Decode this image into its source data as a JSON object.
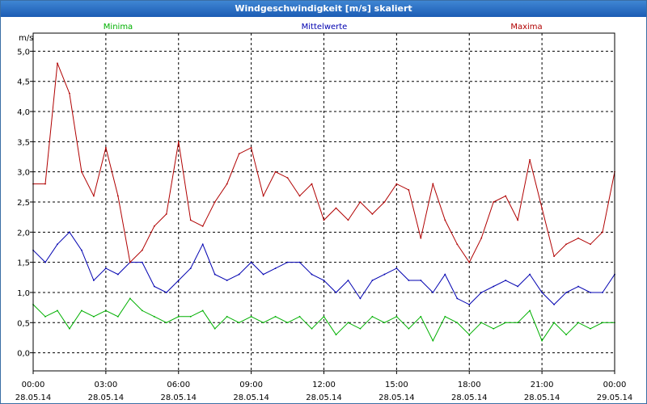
{
  "window": {
    "title": "Windgeschwindigkeit [m/s] skaliert"
  },
  "chart_data": {
    "type": "line",
    "title": "Windgeschwindigkeit [m/s] skaliert",
    "ylabel": "m/s",
    "xlabel": "",
    "ylim": [
      -0.3,
      5.3
    ],
    "xlim": [
      0,
      24
    ],
    "grid": true,
    "legend_placement": "top",
    "yticks": [
      0,
      0.5,
      1,
      1.5,
      2,
      2.5,
      3,
      3.5,
      4,
      4.5,
      5
    ],
    "ytick_labels": [
      "0,0",
      "0,5",
      "1,0",
      "1,5",
      "2,0",
      "2,5",
      "3,0",
      "3,5",
      "4,0",
      "4,5",
      "5,0"
    ],
    "xticks": [
      {
        "time": "00:00",
        "date": "28.05.14"
      },
      {
        "time": "03:00",
        "date": "28.05.14"
      },
      {
        "time": "06:00",
        "date": "28.05.14"
      },
      {
        "time": "09:00",
        "date": "28.05.14"
      },
      {
        "time": "12:00",
        "date": "28.05.14"
      },
      {
        "time": "15:00",
        "date": "28.05.14"
      },
      {
        "time": "18:00",
        "date": "28.05.14"
      },
      {
        "time": "21:00",
        "date": "28.05.14"
      },
      {
        "time": "00:00",
        "date": "29.05.14"
      }
    ],
    "x_hours": [
      0,
      0.5,
      1,
      1.5,
      2,
      2.5,
      3,
      3.5,
      4,
      4.5,
      5,
      5.5,
      6,
      6.5,
      7,
      7.5,
      8,
      8.5,
      9,
      9.5,
      10,
      10.5,
      11,
      11.5,
      12,
      12.5,
      13,
      13.5,
      14,
      14.5,
      15,
      15.5,
      16,
      16.5,
      17,
      17.5,
      18,
      18.5,
      19,
      19.5,
      20,
      20.5,
      21,
      21.5,
      22,
      22.5,
      23,
      23.5,
      24
    ],
    "series": [
      {
        "name": "Minima",
        "color": "#00b000",
        "values": [
          0.8,
          0.6,
          0.7,
          0.4,
          0.7,
          0.6,
          0.7,
          0.6,
          0.9,
          0.7,
          0.6,
          0.5,
          0.6,
          0.6,
          0.7,
          0.4,
          0.6,
          0.5,
          0.6,
          0.5,
          0.6,
          0.5,
          0.6,
          0.4,
          0.6,
          0.3,
          0.5,
          0.4,
          0.6,
          0.5,
          0.6,
          0.4,
          0.6,
          0.2,
          0.6,
          0.5,
          0.3,
          0.5,
          0.4,
          0.5,
          0.5,
          0.7,
          0.2,
          0.5,
          0.3,
          0.5,
          0.4,
          0.5,
          0.5
        ]
      },
      {
        "name": "Mittelwerte",
        "color": "#0000b0",
        "values": [
          1.7,
          1.5,
          1.8,
          2.0,
          1.7,
          1.2,
          1.4,
          1.3,
          1.5,
          1.5,
          1.1,
          1.0,
          1.2,
          1.4,
          1.8,
          1.3,
          1.2,
          1.3,
          1.5,
          1.3,
          1.4,
          1.5,
          1.5,
          1.3,
          1.2,
          1.0,
          1.2,
          0.9,
          1.2,
          1.3,
          1.4,
          1.2,
          1.2,
          1.0,
          1.3,
          0.9,
          0.8,
          1.0,
          1.1,
          1.2,
          1.1,
          1.3,
          1.0,
          0.8,
          1.0,
          1.1,
          1.0,
          1.0,
          1.3
        ]
      },
      {
        "name": "Maxima",
        "color": "#b00000",
        "values": [
          2.8,
          2.8,
          4.8,
          4.3,
          3.0,
          2.6,
          3.4,
          2.6,
          1.5,
          1.7,
          2.1,
          2.3,
          3.5,
          2.2,
          2.1,
          2.5,
          2.8,
          3.3,
          3.4,
          2.6,
          3.0,
          2.9,
          2.6,
          2.8,
          2.2,
          2.4,
          2.2,
          2.5,
          2.3,
          2.5,
          2.8,
          2.7,
          1.9,
          2.8,
          2.2,
          1.8,
          1.5,
          1.9,
          2.5,
          2.6,
          2.2,
          3.2,
          2.4,
          1.6,
          1.8,
          1.9,
          1.8,
          2.0,
          3.0
        ]
      }
    ]
  }
}
